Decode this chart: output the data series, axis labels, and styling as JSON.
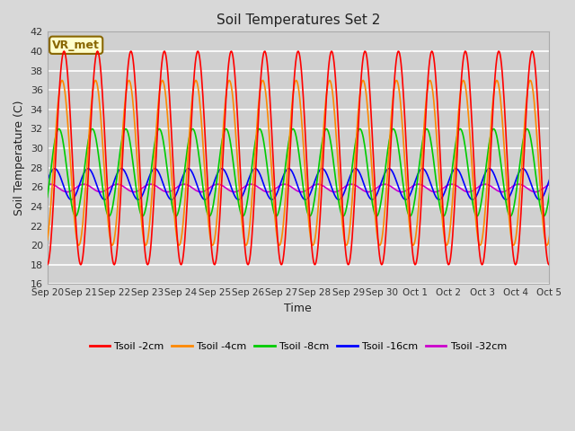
{
  "title": "Soil Temperatures Set 2",
  "xlabel": "Time",
  "ylabel": "Soil Temperature (C)",
  "ylim": [
    16,
    42
  ],
  "yticks": [
    16,
    18,
    20,
    22,
    24,
    26,
    28,
    30,
    32,
    34,
    36,
    38,
    40,
    42
  ],
  "fig_bg_color": "#d8d8d8",
  "plot_bg_color": "#d0d0d0",
  "annotation_text": "VR_met",
  "annotation_bg": "#ffffcc",
  "annotation_border": "#886600",
  "series": {
    "Tsoil -2cm": {
      "color": "#ff0000",
      "lw": 1.2
    },
    "Tsoil -4cm": {
      "color": "#ff8800",
      "lw": 1.2
    },
    "Tsoil -8cm": {
      "color": "#00cc00",
      "lw": 1.2
    },
    "Tsoil -16cm": {
      "color": "#0000ff",
      "lw": 1.2
    },
    "Tsoil -32cm": {
      "color": "#cc00cc",
      "lw": 1.2
    }
  },
  "x_tick_labels": [
    "Sep 20",
    "Sep 21",
    "Sep 22",
    "Sep 23",
    "Sep 24",
    "Sep 25",
    "Sep 26",
    "Sep 27",
    "Sep 28",
    "Sep 29",
    "Sep 30",
    "Oct 1",
    "Oct 2",
    "Oct 3",
    "Oct 4",
    "Oct 5"
  ],
  "n_days": 16,
  "points_per_day": 48,
  "t2cm": {
    "mean": 29.0,
    "amp": 11.0,
    "phase": 1.5708,
    "noise": 0.0
  },
  "t4cm": {
    "mean": 28.5,
    "amp": 8.5,
    "phase": 1.2,
    "noise": 0.0
  },
  "t8cm": {
    "mean": 27.5,
    "amp": 4.5,
    "phase": 0.6,
    "noise": 0.0
  },
  "t16cm": {
    "mean": 26.3,
    "amp": 1.6,
    "phase": -0.2,
    "noise": 0.0
  },
  "t32cm": {
    "mean": 25.9,
    "amp": 0.4,
    "phase": -1.0,
    "noise": 0.0
  }
}
